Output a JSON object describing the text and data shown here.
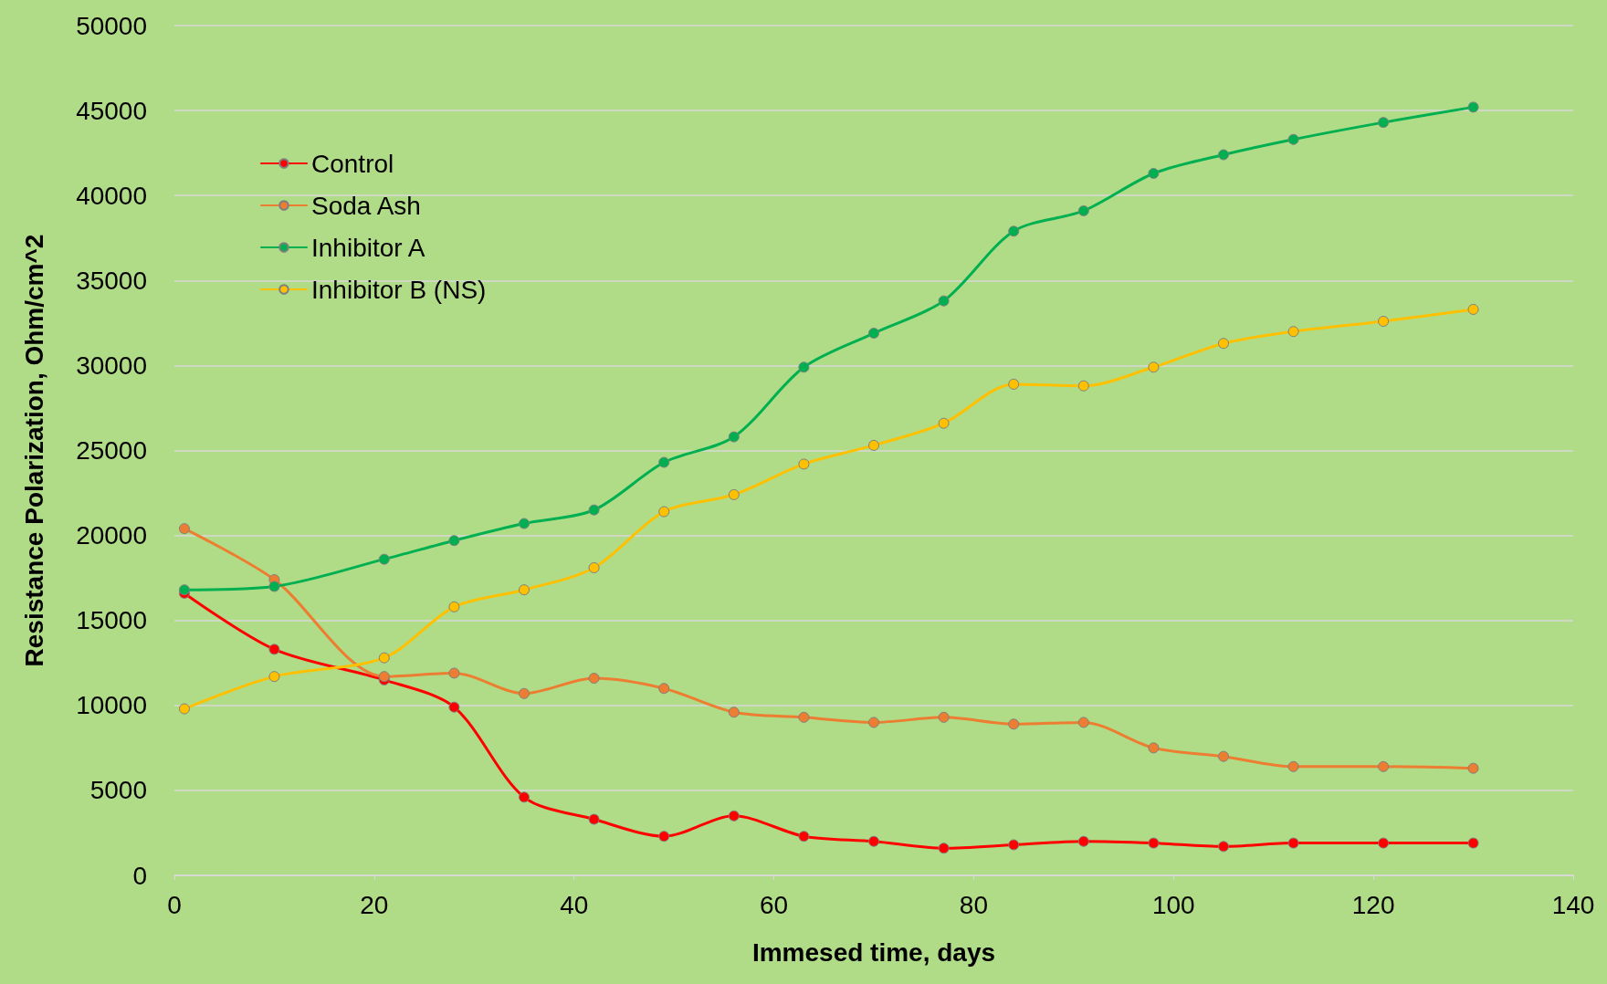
{
  "chart_data": {
    "type": "line",
    "xlabel": "Immesed time, days",
    "ylabel": "Resistance Polarization, Ohm/cm^2",
    "x": [
      1,
      10,
      21,
      28,
      35,
      42,
      49,
      56,
      63,
      70,
      77,
      84,
      91,
      98,
      105,
      112,
      121,
      130
    ],
    "series": [
      {
        "name": "Control",
        "color": "#ff0000",
        "values": [
          16600,
          13300,
          11500,
          9900,
          4600,
          3300,
          2300,
          3500,
          2300,
          2000,
          1600,
          1800,
          2000,
          1900,
          1700,
          1900,
          1900,
          1900
        ]
      },
      {
        "name": "Soda Ash",
        "color": "#ed7d31",
        "values": [
          20400,
          17400,
          11700,
          11900,
          10700,
          11600,
          11000,
          9600,
          9300,
          9000,
          9300,
          8900,
          9000,
          7500,
          7000,
          6400,
          6400,
          6300
        ]
      },
      {
        "name": "Inhibitor A",
        "color": "#00b050",
        "values": [
          16800,
          17000,
          18600,
          19700,
          20700,
          21500,
          24300,
          25800,
          29900,
          31900,
          33800,
          37900,
          39100,
          41300,
          42400,
          43300,
          44300,
          45200
        ]
      },
      {
        "name": "Inhibitor B (NS)",
        "color": "#ffc000",
        "values": [
          9800,
          11700,
          12800,
          15800,
          16800,
          18100,
          21400,
          22400,
          24200,
          25300,
          26600,
          28900,
          28800,
          29900,
          31300,
          32000,
          32600,
          33300
        ]
      }
    ],
    "xlim": [
      0,
      140
    ],
    "xticks": [
      0,
      20,
      40,
      60,
      80,
      100,
      120,
      140
    ],
    "ylim": [
      0,
      50000
    ],
    "yticks": [
      0,
      5000,
      10000,
      15000,
      20000,
      25000,
      30000,
      35000,
      40000,
      45000,
      50000
    ],
    "grid": "y",
    "legend": "top left",
    "marker": "circle",
    "line_style": "solid"
  }
}
